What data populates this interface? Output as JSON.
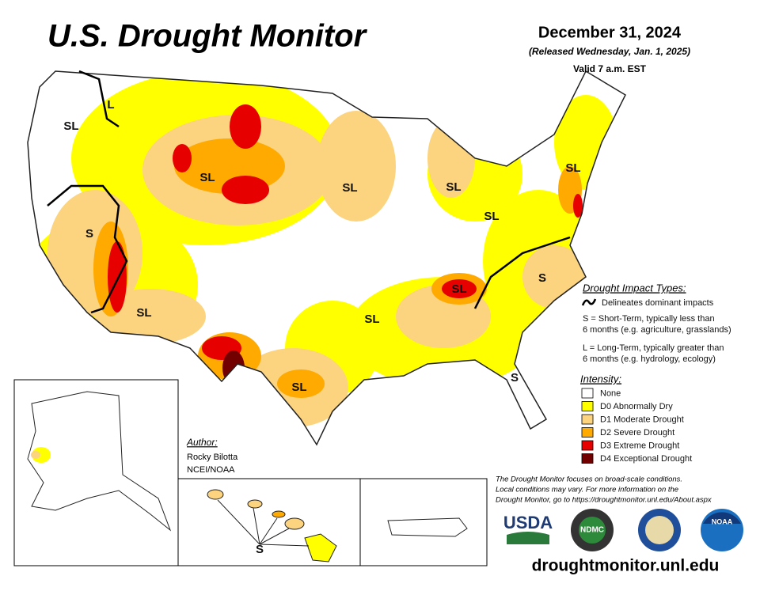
{
  "header": {
    "title": "U.S. Drought Monitor",
    "date": "December 31, 2024",
    "released": "(Released Wednesday, Jan. 1, 2025)",
    "valid": "Valid 7 a.m. EST"
  },
  "map_labels": [
    "SL",
    "L",
    "SL",
    "S",
    "SL",
    "SL",
    "SL",
    "SL",
    "SL",
    "SL",
    "SL",
    "S",
    "S",
    "SL",
    "S"
  ],
  "impact_legend": {
    "title": "Drought Impact Types:",
    "line": "Delineates dominant impacts",
    "short_term": [
      "S = Short-Term, typically less than",
      "6 months (e.g. agriculture, grasslands)"
    ],
    "long_term": [
      "L = Long-Term, typically greater than",
      "6 months (e.g. hydrology, ecology)"
    ]
  },
  "intensity_legend": {
    "title": "Intensity:",
    "items": [
      {
        "name": "None",
        "color": "#ffffff"
      },
      {
        "name": "D0 Abnormally Dry",
        "color": "#ffff00"
      },
      {
        "name": "D1 Moderate Drought",
        "color": "#fcd37f"
      },
      {
        "name": "D2 Severe Drought",
        "color": "#ffaa00"
      },
      {
        "name": "D3 Extreme Drought",
        "color": "#e60000"
      },
      {
        "name": "D4 Exceptional Drought",
        "color": "#730000"
      }
    ]
  },
  "author": {
    "label": "Author:",
    "name": "Rocky Bilotta",
    "org": "NCEI/NOAA"
  },
  "note": [
    "The Drought Monitor focuses on broad-scale conditions.",
    "Local conditions may vary. For more information on the",
    "Drought Monitor, go to https://droughtmonitor.unl.edu/About.aspx"
  ],
  "logos": [
    "USDA",
    "NDMC",
    "NOAA"
  ],
  "url": "droughtmonitor.unl.edu"
}
